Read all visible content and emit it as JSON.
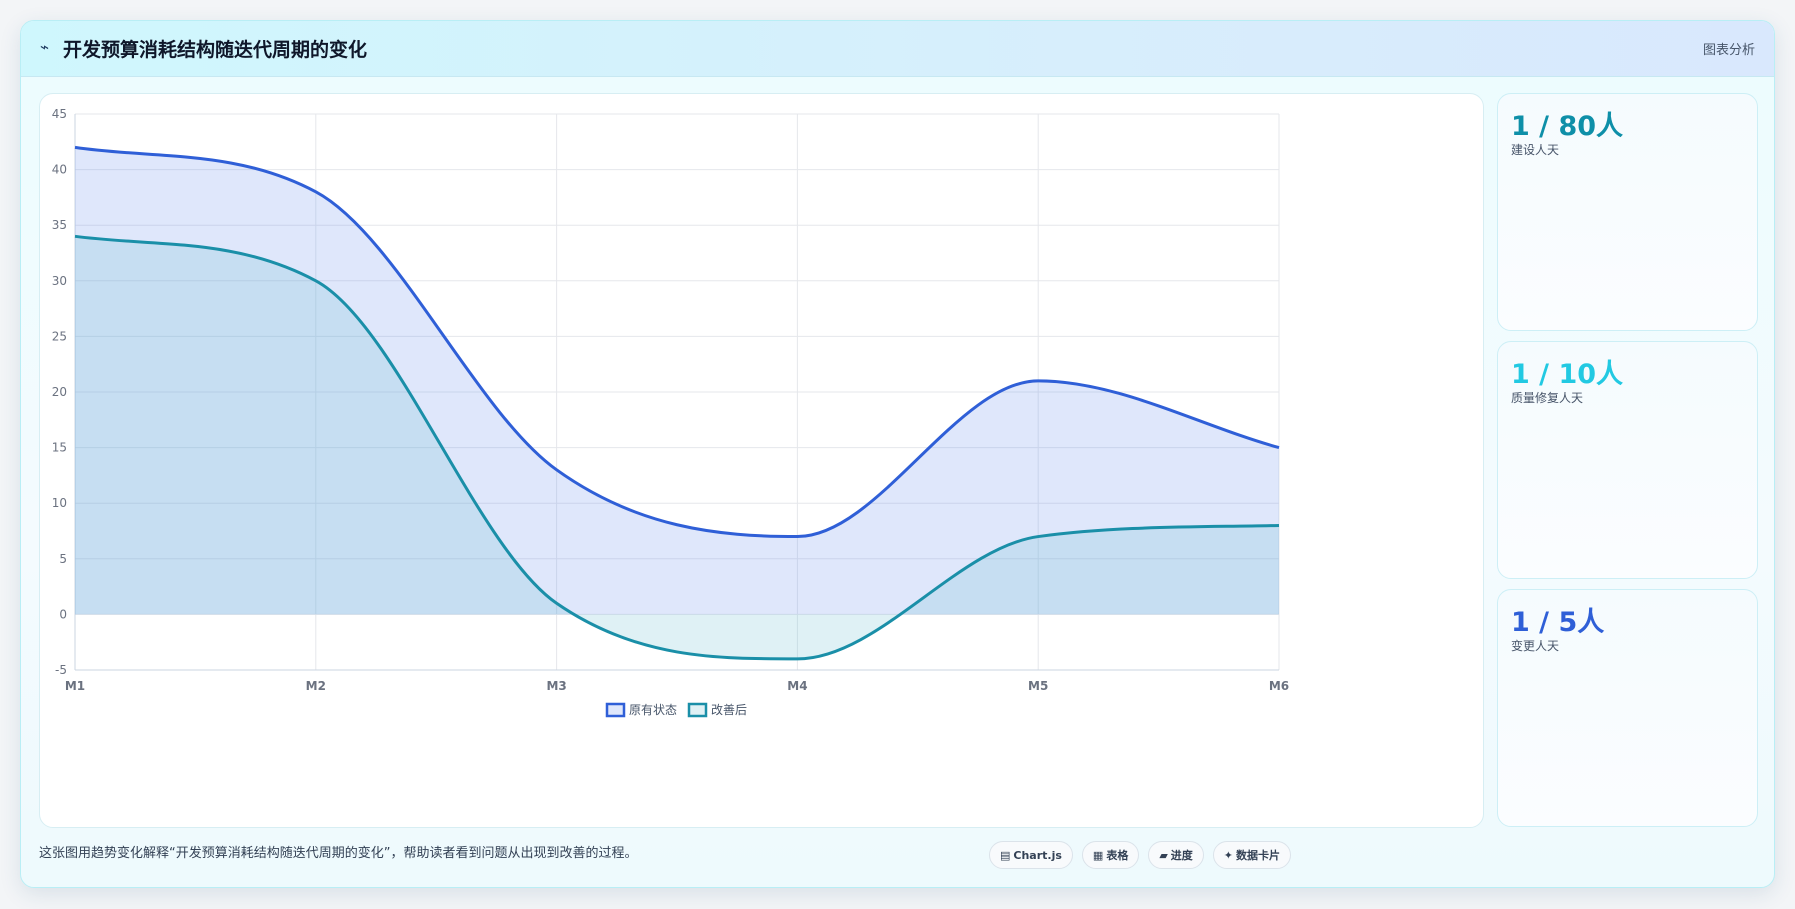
{
  "header": {
    "icon": "wave-icon",
    "icon_glyph": "⌁",
    "title": "开发预算消耗结构随迭代周期的变化",
    "link": "图表分析"
  },
  "chart_data": {
    "type": "area",
    "categories": [
      "M1",
      "M2",
      "M3",
      "M4",
      "M5",
      "M6"
    ],
    "ylim": [
      -5,
      45
    ],
    "yticks": [
      -5,
      0,
      5,
      10,
      15,
      20,
      25,
      30,
      35,
      40,
      45
    ],
    "grid": true,
    "legend_position": "bottom",
    "series": [
      {
        "name": "原有状态",
        "values": [
          42,
          38,
          13,
          7,
          21,
          15
        ],
        "color": "#2f5fd7",
        "fill": "rgba(108,145,235,0.22)"
      },
      {
        "name": "改善后",
        "values": [
          34,
          30,
          1,
          -4,
          7,
          8
        ],
        "color": "#1a8fa8",
        "fill": "rgba(108,190,210,0.22)"
      }
    ]
  },
  "stats": [
    {
      "value": "1 / 80人",
      "label": "建设人天",
      "color": "#0e8fa8"
    },
    {
      "value": "1 / 10人",
      "label": "质量修复人天",
      "color": "#22c9e2"
    },
    {
      "value": "1 / 5人",
      "label": "变更人天",
      "color": "#2f5fd7"
    }
  ],
  "caption": "这张图用趋势变化解释“开发预算消耗结构随迭代周期的变化”，帮助读者看到问题从出现到改善的过程。",
  "chips": [
    {
      "icon": "chart-icon",
      "glyph": "▤",
      "label": "Chart.js"
    },
    {
      "icon": "table-icon",
      "glyph": "▦",
      "label": "表格"
    },
    {
      "icon": "progress-icon",
      "glyph": "▰",
      "label": "进度"
    },
    {
      "icon": "sparkle-icon",
      "glyph": "✦",
      "label": "数据卡片"
    }
  ]
}
